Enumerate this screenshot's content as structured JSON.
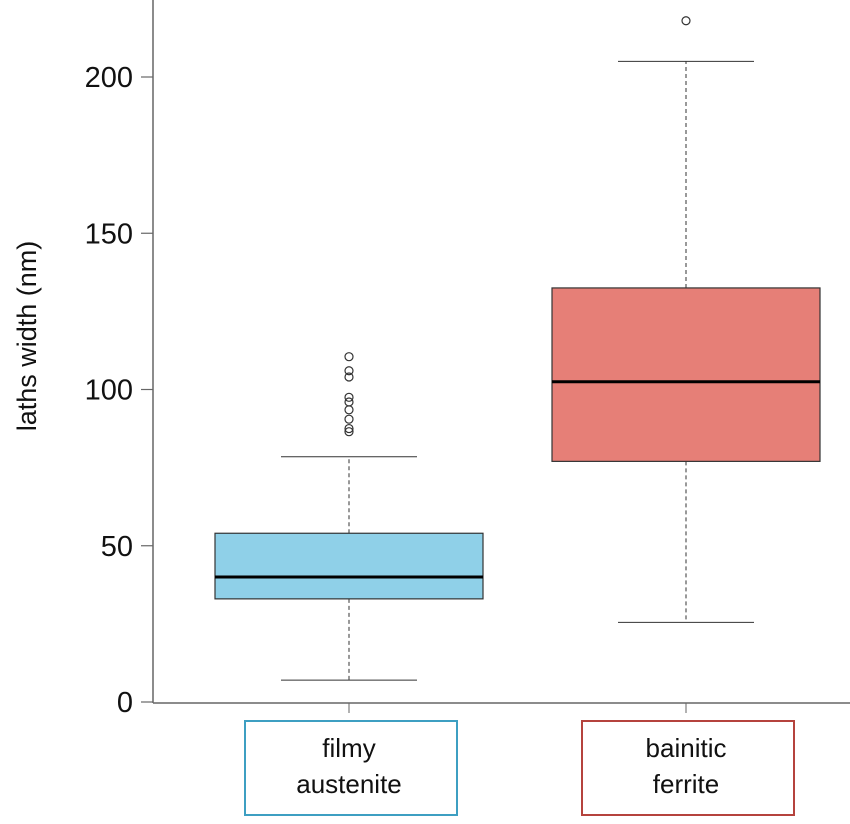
{
  "chart_data": {
    "type": "box",
    "title": "",
    "xlabel": "",
    "ylabel": "laths width (nm)",
    "ylim": [
      0,
      220
    ],
    "yticks": [
      0,
      50,
      100,
      150,
      200
    ],
    "grid": false,
    "categories": [
      {
        "lines": [
          "filmy",
          "austenite"
        ],
        "fill": "#8fd0e8",
        "label_border": "#3d9fc2",
        "whisker_low": 7,
        "q1": 33,
        "median": 40,
        "q3": 54,
        "whisker_high": 78.5,
        "outliers": [
          86.5,
          87.5,
          90.5,
          93.5,
          96,
          97.5,
          104,
          106,
          110.5
        ]
      },
      {
        "lines": [
          "bainitic",
          "ferrite"
        ],
        "fill": "#e67f77",
        "label_border": "#b5433d",
        "whisker_low": 25.5,
        "q1": 77,
        "median": 102.5,
        "q3": 132.5,
        "whisker_high": 205,
        "outliers": [
          218
        ]
      }
    ]
  }
}
